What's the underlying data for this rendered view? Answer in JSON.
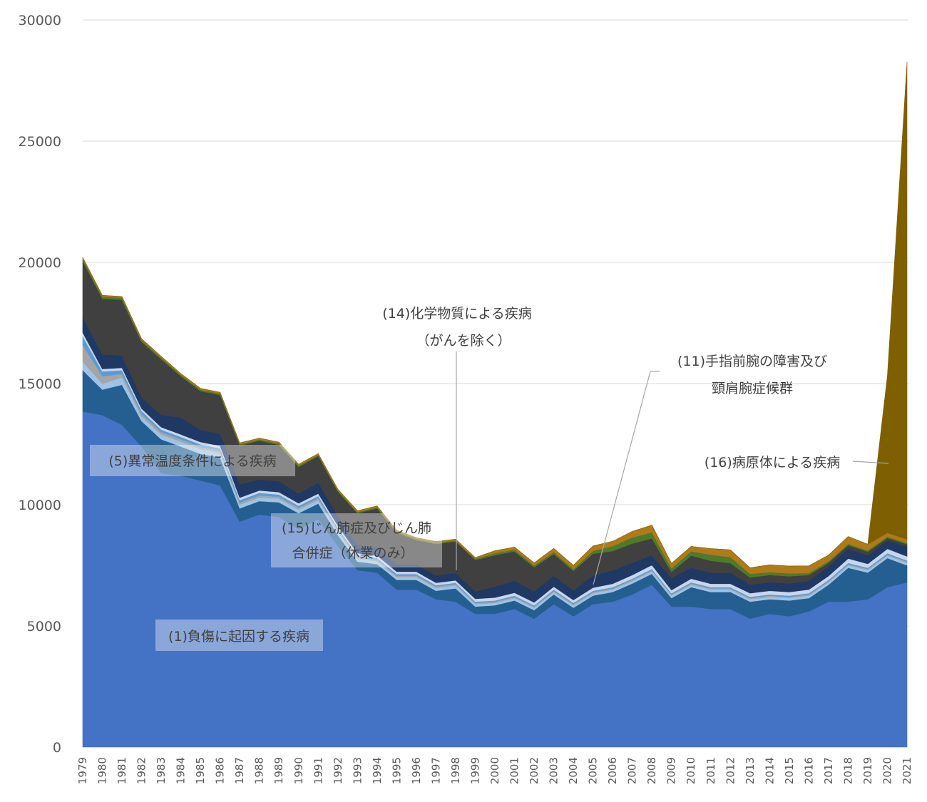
{
  "chart_data": {
    "type": "area",
    "stacked": true,
    "title": "",
    "xlabel": "",
    "ylabel": "",
    "ylim": [
      0,
      30000
    ],
    "y_ticks": [
      "0",
      "5000",
      "10000",
      "15000",
      "20000",
      "25000",
      "30000"
    ],
    "grid": true,
    "legend": "none",
    "x": [
      "1979",
      "1980",
      "1981",
      "1982",
      "1983",
      "1984",
      "1985",
      "1986",
      "1987",
      "1988",
      "1989",
      "1990",
      "1991",
      "1992",
      "1993",
      "1994",
      "1995",
      "1996",
      "1997",
      "1998",
      "1999",
      "2000",
      "2001",
      "2002",
      "2003",
      "2004",
      "2005",
      "2006",
      "2007",
      "2008",
      "2009",
      "2010",
      "2011",
      "2012",
      "2013",
      "2014",
      "2015",
      "2016",
      "2017",
      "2018",
      "2019",
      "2020",
      "2021"
    ],
    "series": [
      {
        "color": "#4472c4",
        "values": [
          13850,
          13700,
          13300,
          12400,
          11300,
          11200,
          11000,
          10800,
          9300,
          9600,
          9500,
          9000,
          9400,
          8300,
          7300,
          7200,
          6500,
          6500,
          6100,
          6000,
          5500,
          5500,
          5700,
          5300,
          5900,
          5400,
          5900,
          6000,
          6300,
          6700,
          5800,
          5800,
          5700,
          5700,
          5300,
          5500,
          5400,
          5600,
          6000,
          6000,
          6100,
          6600,
          6800
        ]
      },
      {
        "color": "#255e91",
        "values": [
          1700,
          1050,
          1650,
          1050,
          1400,
          1200,
          1100,
          1150,
          550,
          550,
          600,
          650,
          650,
          450,
          350,
          350,
          400,
          400,
          350,
          550,
          300,
          350,
          350,
          350,
          400,
          350,
          350,
          400,
          450,
          450,
          350,
          800,
          700,
          700,
          700,
          600,
          650,
          550,
          700,
          1400,
          1100,
          1200,
          700
        ]
      },
      {
        "color": "#9dc3e6",
        "values": [
          350,
          250,
          300,
          180,
          200,
          200,
          200,
          200,
          150,
          150,
          150,
          150,
          150,
          150,
          120,
          120,
          120,
          120,
          120,
          120,
          100,
          100,
          100,
          100,
          100,
          100,
          100,
          100,
          100,
          100,
          100,
          100,
          100,
          100,
          100,
          100,
          100,
          100,
          100,
          100,
          100,
          100,
          100
        ]
      },
      {
        "color": "#a5a5a5",
        "values": [
          700,
          300,
          150,
          120,
          100,
          100,
          90,
          90,
          90,
          90,
          80,
          80,
          80,
          70,
          60,
          60,
          60,
          60,
          60,
          60,
          50,
          50,
          50,
          50,
          50,
          50,
          50,
          50,
          50,
          50,
          50,
          50,
          50,
          50,
          50,
          50,
          50,
          50,
          50,
          50,
          50,
          50,
          50
        ]
      },
      {
        "color": "#5b9bd5",
        "values": [
          350,
          200,
          150,
          120,
          100,
          100,
          100,
          90,
          100,
          100,
          90,
          80,
          80,
          70,
          70,
          70,
          60,
          60,
          50,
          50,
          50,
          50,
          50,
          50,
          50,
          50,
          50,
          50,
          50,
          50,
          50,
          50,
          50,
          50,
          50,
          50,
          50,
          50,
          50,
          50,
          50,
          50,
          50
        ]
      },
      {
        "color": "#c9d6ee",
        "values": [
          150,
          100,
          100,
          100,
          100,
          100,
          100,
          100,
          100,
          100,
          100,
          100,
          100,
          100,
          100,
          100,
          100,
          100,
          100,
          100,
          120,
          120,
          120,
          120,
          120,
          120,
          130,
          140,
          150,
          160,
          130,
          150,
          140,
          140,
          150,
          150,
          150,
          150,
          160,
          180,
          160,
          180,
          170
        ]
      },
      {
        "color": "#1f3864",
        "values": [
          650,
          600,
          500,
          450,
          500,
          700,
          500,
          500,
          550,
          450,
          450,
          400,
          450,
          400,
          350,
          350,
          300,
          300,
          300,
          300,
          300,
          450,
          500,
          450,
          450,
          400,
          500,
          550,
          500,
          400,
          500,
          450,
          450,
          450,
          350,
          350,
          350,
          350,
          400,
          400,
          350,
          350,
          400
        ]
      },
      {
        "color": "#404040",
        "values": [
          2300,
          2300,
          2300,
          2300,
          2300,
          1700,
          1600,
          1600,
          1600,
          1600,
          1500,
          1100,
          1100,
          1000,
          1300,
          1600,
          1300,
          1000,
          1300,
          1300,
          1300,
          1300,
          1200,
          1000,
          900,
          800,
          900,
          800,
          800,
          700,
          250,
          500,
          500,
          400,
          300,
          300,
          300,
          250,
          150,
          150,
          150,
          100,
          100
        ]
      },
      {
        "color": "#4e7a2b",
        "values": [
          100,
          90,
          90,
          80,
          70,
          60,
          60,
          60,
          60,
          60,
          60,
          60,
          50,
          50,
          50,
          50,
          50,
          50,
          50,
          50,
          50,
          80,
          80,
          80,
          80,
          80,
          120,
          200,
          250,
          250,
          150,
          180,
          250,
          250,
          150,
          120,
          120,
          80,
          60,
          60,
          60,
          60,
          50
        ]
      },
      {
        "color": "#b07a18",
        "values": [
          50,
          50,
          50,
          50,
          50,
          50,
          50,
          50,
          50,
          50,
          50,
          50,
          50,
          50,
          50,
          50,
          50,
          50,
          50,
          50,
          50,
          100,
          100,
          100,
          150,
          150,
          200,
          200,
          250,
          300,
          200,
          200,
          250,
          300,
          250,
          300,
          300,
          300,
          250,
          300,
          250,
          150,
          150
        ]
      },
      {
        "color": "#7f6000",
        "values": [
          0,
          0,
          0,
          0,
          0,
          0,
          0,
          0,
          0,
          0,
          0,
          0,
          0,
          0,
          0,
          0,
          0,
          0,
          0,
          0,
          0,
          0,
          0,
          0,
          0,
          0,
          0,
          0,
          0,
          0,
          0,
          0,
          0,
          0,
          0,
          0,
          0,
          0,
          0,
          0,
          0,
          6500,
          19700
        ]
      }
    ],
    "annotations": [
      {
        "lines": [
          "(1)負傷に起因する疾病"
        ]
      },
      {
        "lines": [
          "(5)異常温度条件による疾病"
        ]
      },
      {
        "lines": [
          "(15)じん肺症及びじん肺",
          "合併症（休業のみ）"
        ]
      },
      {
        "lines": [
          "(14)化学物質による疾病",
          "（がんを除く）"
        ]
      },
      {
        "lines": [
          "(11)手指前腕の障害及び",
          "頸肩腕症候群"
        ]
      },
      {
        "lines": [
          "(16)病原体による疾病"
        ]
      }
    ]
  }
}
